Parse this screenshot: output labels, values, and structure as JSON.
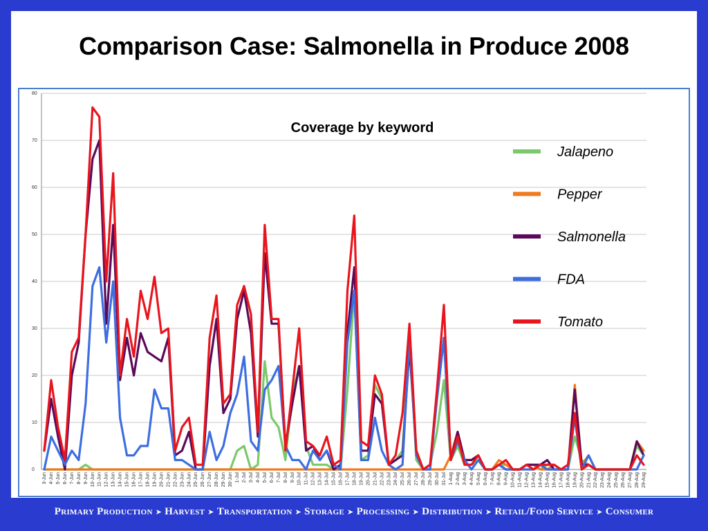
{
  "slide": {
    "title": "Comparison Case: Salmonella in Produce 2008",
    "footer_steps": [
      "Primary Production",
      "Harvest",
      "Transportation",
      "Storage",
      "Processing",
      "Distribution",
      "Retail/Food Service",
      "Consumer"
    ],
    "colors": {
      "background": "#2a3bd0",
      "frame": "#4a7fd0"
    }
  },
  "chart_data": {
    "type": "line",
    "title": "Coverage by keyword",
    "ylim": [
      0,
      80
    ],
    "yticks": [
      0,
      10,
      20,
      30,
      40,
      50,
      60,
      70,
      80
    ],
    "grid": true,
    "legend": "right",
    "categories": [
      "3-Jun",
      "4-Jun",
      "5-Jun",
      "6-Jun",
      "7-Jun",
      "8-Jun",
      "9-Jun",
      "10-Jun",
      "11-Jun",
      "12-Jun",
      "13-Jun",
      "14-Jun",
      "15-Jun",
      "16-Jun",
      "17-Jun",
      "18-Jun",
      "19-Jun",
      "20-Jun",
      "21-Jun",
      "22-Jun",
      "23-Jun",
      "24-Jun",
      "25-Jun",
      "26-Jun",
      "27-Jun",
      "28-Jun",
      "29-Jun",
      "30-Jun",
      "1-Jul",
      "2-Jul",
      "3-Jul",
      "4-Jul",
      "5-Jul",
      "6-Jul",
      "7-Jul",
      "8-Jul",
      "9-Jul",
      "10-Jul",
      "11-Jul",
      "12-Jul",
      "13-Jul",
      "14-Jul",
      "15-Jul",
      "16-Jul",
      "17-Jul",
      "18-Jul",
      "19-Jul",
      "20-Jul",
      "21-Jul",
      "22-Jul",
      "23-Jul",
      "24-Jul",
      "25-Jul",
      "26-Jul",
      "27-Jul",
      "28-Jul",
      "29-Jul",
      "30-Jul",
      "31-Jul",
      "1-Aug",
      "2-Aug",
      "3-Aug",
      "4-Aug",
      "5-Aug",
      "6-Aug",
      "7-Aug",
      "8-Aug",
      "9-Aug",
      "10-Aug",
      "11-Aug",
      "12-Aug",
      "13-Aug",
      "14-Aug",
      "15-Aug",
      "16-Aug",
      "17-Aug",
      "18-Aug",
      "19-Aug",
      "20-Aug",
      "21-Aug",
      "22-Aug",
      "23-Aug",
      "24-Aug",
      "25-Aug",
      "26-Aug",
      "27-Aug",
      "28-Aug",
      "29-Aug"
    ],
    "series": [
      {
        "name": "Jalapeno",
        "color": "#7ac96a",
        "values": [
          0,
          0,
          0,
          0,
          0,
          0,
          1,
          0,
          0,
          0,
          0,
          0,
          0,
          0,
          0,
          0,
          0,
          0,
          0,
          0,
          0,
          0,
          0,
          0,
          0,
          0,
          0,
          0,
          4,
          5,
          0,
          1,
          23,
          11,
          9,
          2,
          16,
          22,
          5,
          1,
          1,
          1,
          0,
          0,
          17,
          38,
          2,
          3,
          18,
          15,
          1,
          2,
          4,
          28,
          2,
          0,
          1,
          8,
          19,
          2,
          5,
          1,
          1,
          2,
          0,
          0,
          1,
          1,
          0,
          0,
          1,
          1,
          0,
          1,
          1,
          0,
          0,
          7,
          2,
          1,
          0,
          0,
          0,
          0,
          0,
          0,
          5,
          3
        ]
      },
      {
        "name": "Pepper",
        "color": "#f07a1e",
        "values": [
          0,
          0,
          0,
          0,
          0,
          0,
          0,
          0,
          0,
          0,
          0,
          0,
          0,
          0,
          0,
          0,
          0,
          0,
          0,
          0,
          0,
          0,
          0,
          0,
          0,
          0,
          0,
          0,
          0,
          0,
          0,
          0,
          0,
          0,
          0,
          0,
          0,
          0,
          0,
          0,
          0,
          0,
          0,
          0,
          0,
          0,
          0,
          0,
          0,
          0,
          0,
          0,
          0,
          0,
          0,
          0,
          0,
          0,
          0,
          3,
          8,
          2,
          2,
          3,
          0,
          0,
          2,
          1,
          0,
          0,
          1,
          1,
          0,
          0,
          1,
          0,
          0,
          18,
          1,
          3,
          0,
          0,
          0,
          0,
          0,
          0,
          6,
          4
        ]
      },
      {
        "name": "Salmonella",
        "color": "#5a0a5a",
        "values": [
          4,
          15,
          7,
          0,
          20,
          27,
          50,
          66,
          70,
          31,
          52,
          19,
          28,
          20,
          29,
          25,
          24,
          23,
          28,
          3,
          4,
          8,
          0,
          0,
          22,
          32,
          12,
          15,
          32,
          38,
          29,
          7,
          46,
          31,
          31,
          5,
          14,
          22,
          4,
          5,
          2,
          4,
          0,
          1,
          29,
          43,
          4,
          4,
          16,
          14,
          1,
          2,
          3,
          26,
          4,
          0,
          1,
          15,
          28,
          2,
          8,
          2,
          2,
          3,
          0,
          0,
          1,
          0,
          0,
          0,
          1,
          1,
          1,
          2,
          0,
          0,
          0,
          17,
          1,
          1,
          0,
          0,
          0,
          0,
          0,
          0,
          6,
          3
        ]
      },
      {
        "name": "FDA",
        "color": "#3d6ee0",
        "values": [
          0,
          7,
          4,
          1,
          4,
          2,
          14,
          39,
          43,
          27,
          40,
          11,
          3,
          3,
          5,
          5,
          17,
          13,
          13,
          2,
          2,
          1,
          0,
          0,
          8,
          2,
          5,
          12,
          16,
          24,
          6,
          4,
          17,
          19,
          22,
          5,
          2,
          2,
          0,
          4,
          2,
          4,
          1,
          0,
          27,
          38,
          2,
          2,
          11,
          4,
          1,
          0,
          1,
          28,
          3,
          0,
          0,
          15,
          28,
          2,
          6,
          2,
          0,
          2,
          0,
          0,
          1,
          0,
          0,
          0,
          0,
          0,
          1,
          0,
          0,
          0,
          0,
          11,
          0,
          3,
          0,
          0,
          0,
          0,
          0,
          0,
          0,
          3
        ]
      },
      {
        "name": "Tomato",
        "color": "#e8151d",
        "values": [
          4,
          19,
          9,
          2,
          25,
          28,
          50,
          77,
          75,
          40,
          63,
          20,
          32,
          24,
          38,
          32,
          41,
          29,
          30,
          4,
          9,
          11,
          1,
          1,
          28,
          37,
          14,
          16,
          35,
          39,
          33,
          8,
          52,
          32,
          32,
          4,
          17,
          30,
          6,
          5,
          3,
          7,
          1,
          2,
          38,
          54,
          6,
          5,
          20,
          16,
          1,
          3,
          12,
          31,
          4,
          0,
          1,
          17,
          35,
          2,
          7,
          1,
          1,
          3,
          0,
          0,
          1,
          2,
          0,
          0,
          1,
          0,
          1,
          1,
          1,
          0,
          1,
          12,
          0,
          1,
          0,
          0,
          0,
          0,
          0,
          0,
          3,
          1
        ]
      }
    ]
  }
}
